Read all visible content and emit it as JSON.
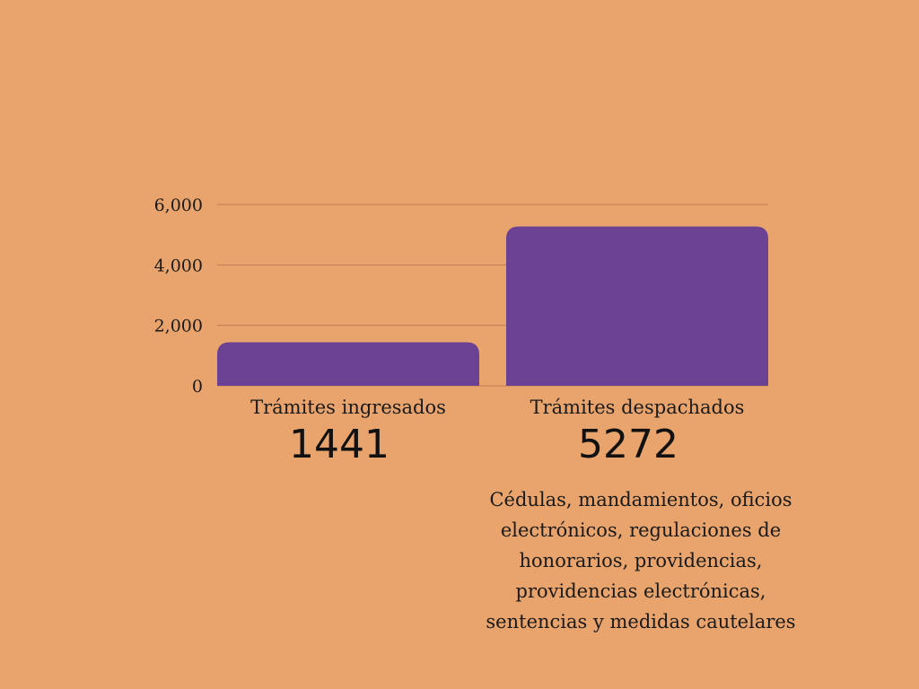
{
  "colors": {
    "background": "#E8A46C",
    "bar": "#6A4193",
    "gridline": "#C07E55"
  },
  "chart_data": {
    "type": "bar",
    "categories": [
      "Trámites ingresados",
      "Trámites despachados"
    ],
    "values": [
      1441,
      5272
    ],
    "value_labels": [
      "1441",
      "5272"
    ],
    "ylim": [
      0,
      6000
    ],
    "yticks": [
      0,
      2000,
      4000,
      6000
    ],
    "ytick_labels": [
      "0",
      "2,000",
      "4,000",
      "6,000"
    ],
    "grid": true,
    "legend": "none"
  },
  "note": "Cédulas, mandamientos, oficios electrónicos, regulaciones de honorarios, providencias, providencias electrónicas, sentencias y medidas cautelares"
}
